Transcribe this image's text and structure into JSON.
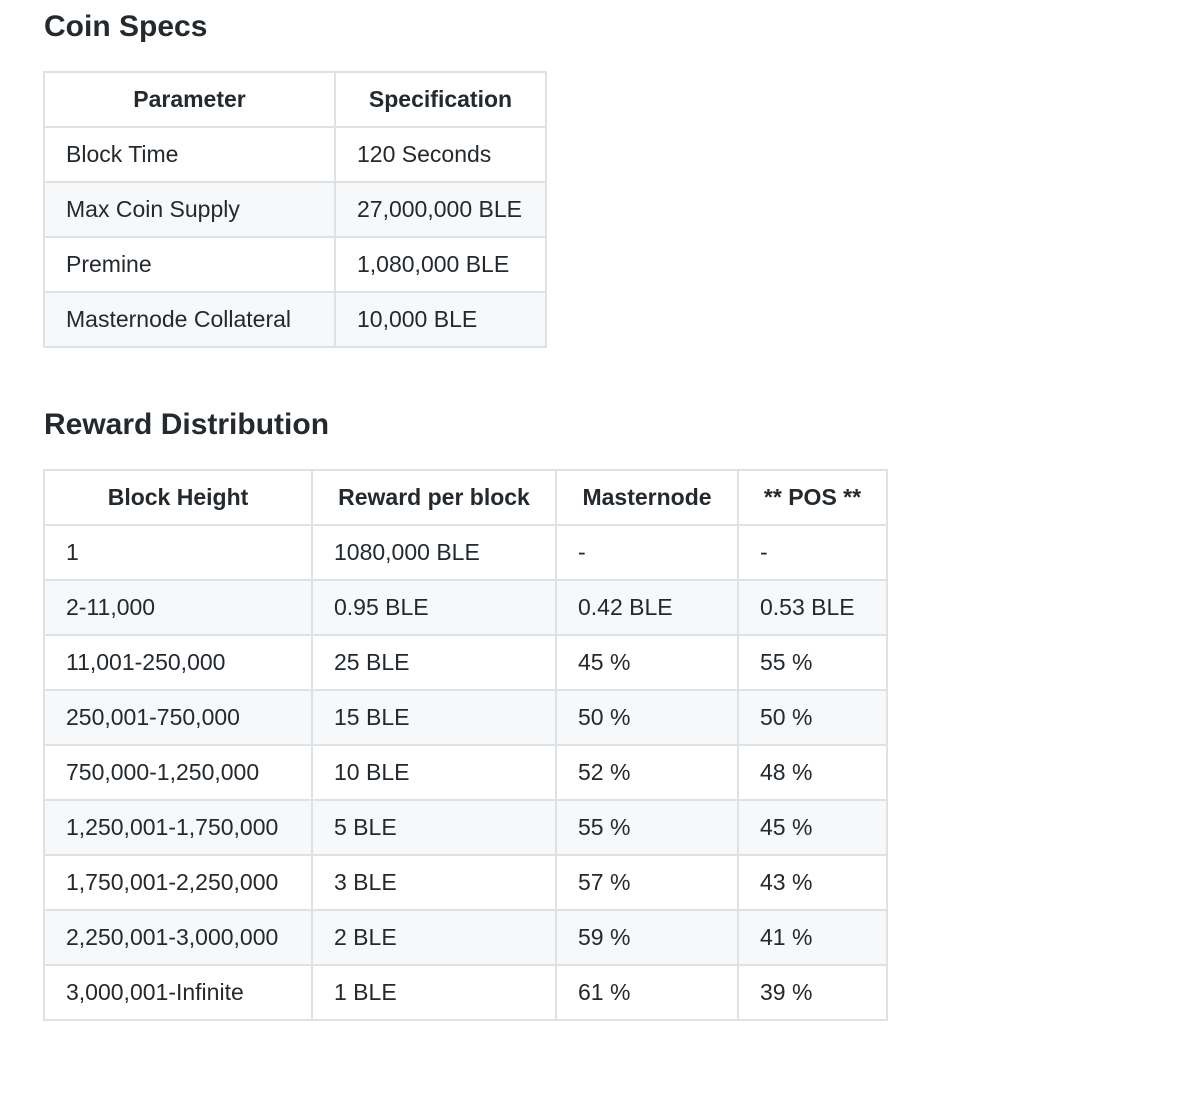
{
  "coin_specs": {
    "heading": "Coin Specs",
    "headers": [
      "Parameter",
      "Specification"
    ],
    "rows": [
      [
        "Block Time",
        "120 Seconds"
      ],
      [
        "Max Coin Supply",
        "27,000,000 BLE"
      ],
      [
        "Premine",
        "1,080,000 BLE"
      ],
      [
        "Masternode Collateral",
        "10,000 BLE"
      ]
    ]
  },
  "reward_distribution": {
    "heading": "Reward Distribution",
    "headers": [
      "Block Height",
      "Reward per block",
      "Masternode",
      "** POS **"
    ],
    "rows": [
      [
        "1",
        "1080,000 BLE",
        "-",
        "-"
      ],
      [
        "2-11,000",
        "0.95 BLE",
        "0.42 BLE",
        "0.53 BLE"
      ],
      [
        "11,001-250,000",
        "25 BLE",
        "45 %",
        "55 %"
      ],
      [
        "250,001-750,000",
        "15 BLE",
        "50 %",
        "50 %"
      ],
      [
        "750,000-1,250,000",
        "10 BLE",
        "52 %",
        "48 %"
      ],
      [
        "1,250,001-1,750,000",
        "5 BLE",
        "55 %",
        "45 %"
      ],
      [
        "1,750,001-2,250,000",
        "3 BLE",
        "57 %",
        "43 %"
      ],
      [
        "2,250,001-3,000,000",
        "2 BLE",
        "59 %",
        "41 %"
      ],
      [
        "3,000,001-Infinite",
        "1 BLE",
        "61 %",
        "39 %"
      ]
    ]
  }
}
